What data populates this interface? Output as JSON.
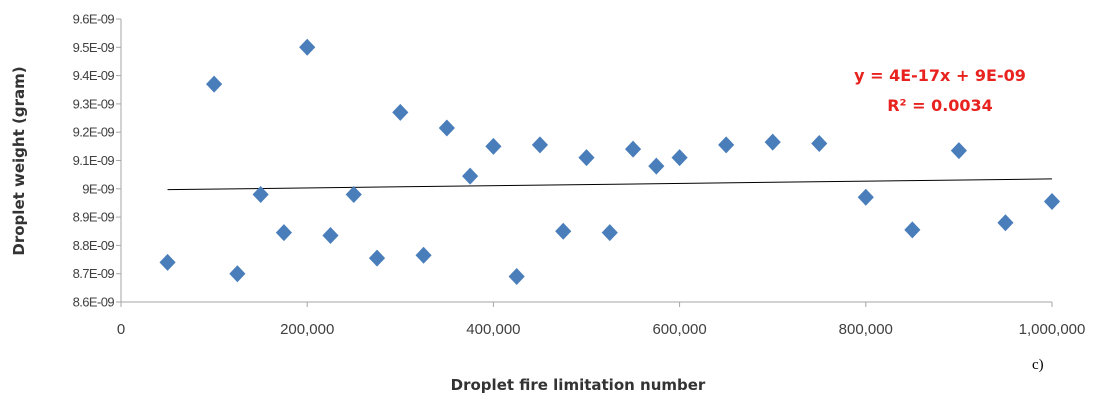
{
  "chart_data": {
    "type": "scatter",
    "title": "",
    "xlabel": "Droplet fire limitation number",
    "ylabel": "Droplet weight (gram)",
    "xlim": [
      0,
      1000000
    ],
    "ylim": [
      8.6e-09,
      9.6e-09
    ],
    "x_ticks": [
      0,
      200000,
      400000,
      600000,
      800000,
      1000000
    ],
    "x_tick_labels": [
      "0",
      "200,000",
      "400,000",
      "600,000",
      "800,000",
      "1,000,000"
    ],
    "y_ticks": [
      8.6e-09,
      8.7e-09,
      8.8e-09,
      8.9e-09,
      9e-09,
      9.1e-09,
      9.2e-09,
      9.3e-09,
      9.4e-09,
      9.5e-09,
      9.6e-09
    ],
    "y_tick_labels": [
      "8.6E-09",
      "8.7E-09",
      "8.8E-09",
      "8.9E-09",
      "9E-09",
      "9.1E-09",
      "9.2E-09",
      "9.3E-09",
      "9.4E-09",
      "9.5E-09",
      "9.6E-09"
    ],
    "grid": false,
    "marker_color": "#4a7ebb",
    "trendline_color": "#000000",
    "points": [
      {
        "x": 50000,
        "y": 8.74e-09
      },
      {
        "x": 100000,
        "y": 9.37e-09
      },
      {
        "x": 125000,
        "y": 8.7e-09
      },
      {
        "x": 150000,
        "y": 8.98e-09
      },
      {
        "x": 175000,
        "y": 8.845e-09
      },
      {
        "x": 200000,
        "y": 9.5e-09
      },
      {
        "x": 225000,
        "y": 8.835e-09
      },
      {
        "x": 250000,
        "y": 8.98e-09
      },
      {
        "x": 275000,
        "y": 8.755e-09
      },
      {
        "x": 300000,
        "y": 9.27e-09
      },
      {
        "x": 325000,
        "y": 8.765e-09
      },
      {
        "x": 350000,
        "y": 9.215e-09
      },
      {
        "x": 375000,
        "y": 9.045e-09
      },
      {
        "x": 400000,
        "y": 9.15e-09
      },
      {
        "x": 425000,
        "y": 8.69e-09
      },
      {
        "x": 450000,
        "y": 9.155e-09
      },
      {
        "x": 475000,
        "y": 8.85e-09
      },
      {
        "x": 500000,
        "y": 9.11e-09
      },
      {
        "x": 525000,
        "y": 8.845e-09
      },
      {
        "x": 550000,
        "y": 9.14e-09
      },
      {
        "x": 575000,
        "y": 9.08e-09
      },
      {
        "x": 600000,
        "y": 9.11e-09
      },
      {
        "x": 650000,
        "y": 9.155e-09
      },
      {
        "x": 700000,
        "y": 9.165e-09
      },
      {
        "x": 750000,
        "y": 9.16e-09
      },
      {
        "x": 800000,
        "y": 8.97e-09
      },
      {
        "x": 850000,
        "y": 8.855e-09
      },
      {
        "x": 900000,
        "y": 9.135e-09
      },
      {
        "x": 950000,
        "y": 8.88e-09
      },
      {
        "x": 1000000,
        "y": 8.955e-09
      }
    ],
    "trendline": {
      "type": "linear",
      "x_range": [
        50000,
        1000000
      ],
      "slope": 4e-17,
      "intercept": 8.995e-09,
      "equation": "y = 4E-17x + 9E-09",
      "r_squared": "R² = 0.0034",
      "label_color": "#e8231f"
    },
    "panel_label": "c)"
  }
}
